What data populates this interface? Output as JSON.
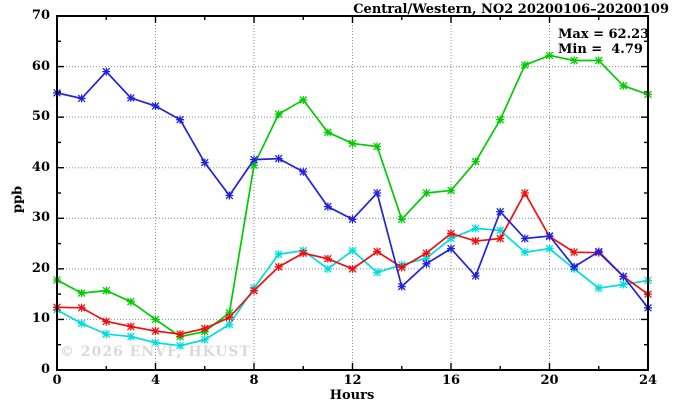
{
  "header": {
    "title": "Central/Western, NO2 20200106–20200109"
  },
  "stats": {
    "max_label": "Max = 62.23",
    "min_label": "Min =  4.79"
  },
  "watermark": "© 2026 ENVF, HKUST",
  "chart_data": {
    "type": "line",
    "title": "Central/Western, NO2 20200106–20200109",
    "xlabel": "Hours",
    "ylabel": "ppb",
    "xlim": [
      0,
      24
    ],
    "ylim": [
      0,
      70
    ],
    "x_major_ticks": [
      0,
      4,
      8,
      12,
      16,
      20,
      24
    ],
    "x_minor_step": 2,
    "y_major_ticks": [
      0,
      10,
      20,
      30,
      40,
      50,
      60,
      70
    ],
    "y_minor_step": 5,
    "grid": "dotted-at-major-ticks",
    "legend_position": "none",
    "marker": "asterisk",
    "stats": {
      "max": 62.23,
      "min": 4.79
    },
    "x": [
      0,
      1,
      2,
      3,
      4,
      5,
      6,
      7,
      8,
      9,
      10,
      11,
      12,
      13,
      14,
      15,
      16,
      17,
      18,
      19,
      20,
      21,
      22,
      23,
      24
    ],
    "series": [
      {
        "name": "series-green",
        "color": "#00cc00",
        "values": [
          17.8,
          15.2,
          15.7,
          13.5,
          10.0,
          6.6,
          7.6,
          11.3,
          40.5,
          50.6,
          53.4,
          47.0,
          44.8,
          44.2,
          29.8,
          35.0,
          35.5,
          41.2,
          49.5,
          60.3,
          62.2,
          61.2,
          61.2,
          56.2,
          54.5
        ]
      },
      {
        "name": "series-cyan",
        "color": "#00dddd",
        "values": [
          11.9,
          9.2,
          7.1,
          6.6,
          5.4,
          4.8,
          6.0,
          9.0,
          16.2,
          22.9,
          23.6,
          20.0,
          23.6,
          19.3,
          20.8,
          22.1,
          26.0,
          28.0,
          27.6,
          23.3,
          24.0,
          20.0,
          16.2,
          16.9,
          17.7
        ]
      },
      {
        "name": "series-red",
        "color": "#ee1111",
        "values": [
          12.4,
          12.3,
          9.6,
          8.6,
          7.7,
          7.1,
          8.2,
          10.4,
          15.7,
          20.4,
          23.1,
          22.0,
          20.0,
          23.4,
          20.3,
          23.1,
          27.0,
          25.5,
          26.0,
          35.0,
          26.4,
          23.3,
          23.2,
          18.5,
          15.0
        ]
      },
      {
        "name": "series-blue",
        "color": "#2222dd",
        "values": [
          54.8,
          53.7,
          59.0,
          53.8,
          52.2,
          49.5,
          41.0,
          34.5,
          41.6,
          41.8,
          39.2,
          32.3,
          29.8,
          35.0,
          16.5,
          21.0,
          24.0,
          18.6,
          31.3,
          26.0,
          26.5,
          20.4,
          23.4,
          18.5,
          12.3
        ]
      }
    ]
  }
}
